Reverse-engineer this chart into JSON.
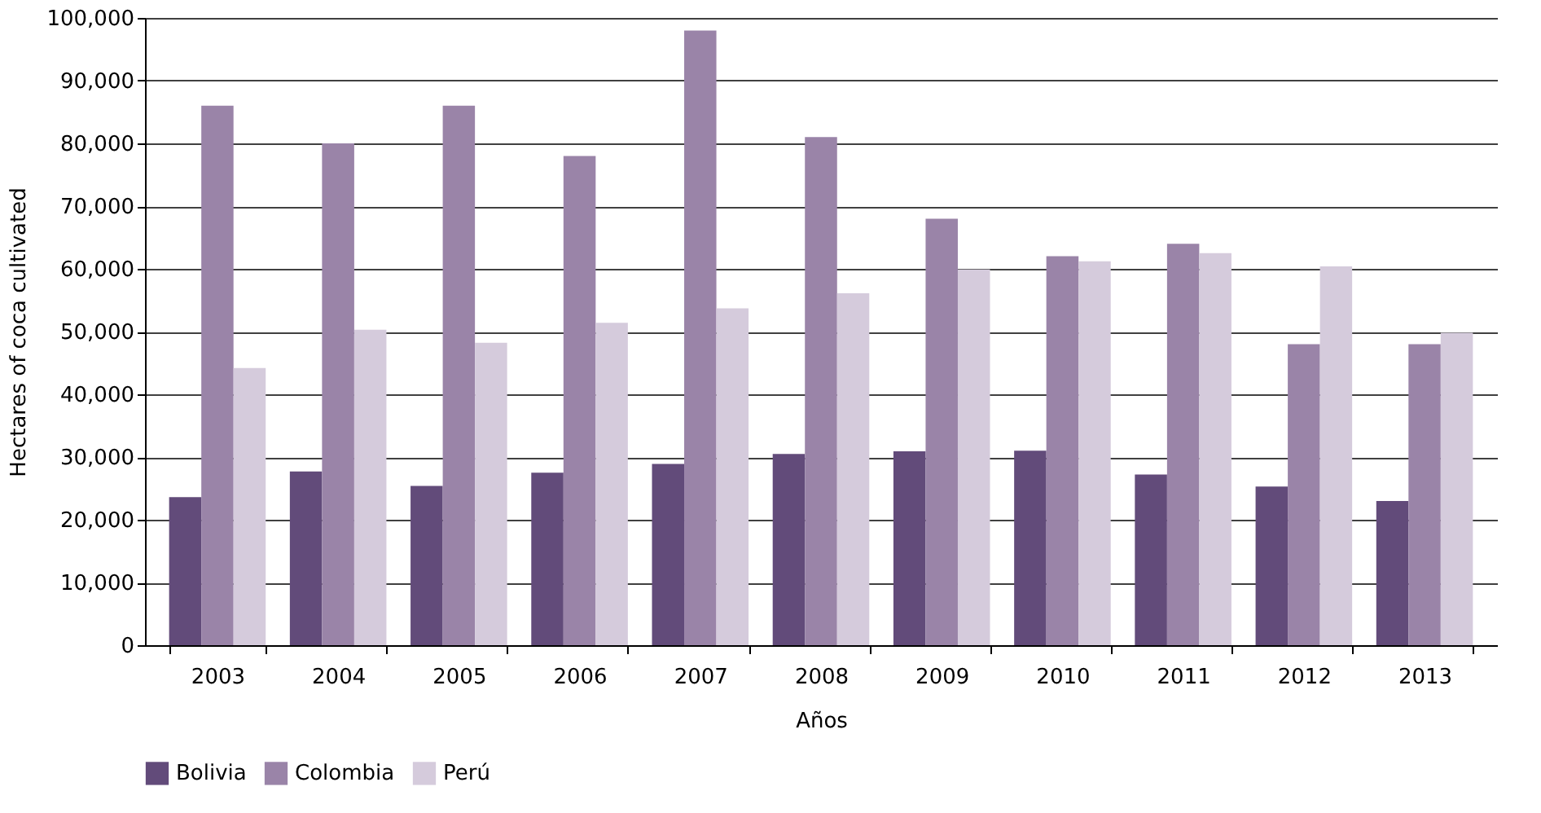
{
  "chart_data": {
    "type": "bar",
    "xlabel": "Años",
    "ylabel": "Hectares of coca cultivated",
    "categories": [
      "2003",
      "2004",
      "2005",
      "2006",
      "2007",
      "2008",
      "2009",
      "2010",
      "2011",
      "2012",
      "2013"
    ],
    "series": [
      {
        "name": "Bolivia",
        "color": "#624b7a",
        "values": [
          23600,
          27700,
          25400,
          27500,
          28900,
          30500,
          30900,
          31000,
          27200,
          25300,
          23000
        ]
      },
      {
        "name": "Colombia",
        "color": "#9a84a8",
        "values": [
          86000,
          80000,
          86000,
          78000,
          98000,
          81000,
          68000,
          62000,
          64000,
          48000,
          48000
        ]
      },
      {
        "name": "Perú",
        "color": "#d5cbdc",
        "values": [
          44200,
          50300,
          48200,
          51400,
          53700,
          56100,
          59900,
          61200,
          62500,
          60400,
          49800
        ]
      }
    ],
    "ylim": [
      0,
      100000
    ],
    "yticks": [
      {
        "value": 0,
        "label": "0"
      },
      {
        "value": 10000,
        "label": "10,000"
      },
      {
        "value": 20000,
        "label": "20,000"
      },
      {
        "value": 30000,
        "label": "30,000"
      },
      {
        "value": 40000,
        "label": "40,000"
      },
      {
        "value": 50000,
        "label": "50,000"
      },
      {
        "value": 60000,
        "label": "60,000"
      },
      {
        "value": 70000,
        "label": "70,000"
      },
      {
        "value": 80000,
        "label": "80,000"
      },
      {
        "value": 90000,
        "label": "90,000"
      },
      {
        "value": 100000,
        "label": "100,000"
      }
    ],
    "grid": "y",
    "legend": "bottom"
  }
}
